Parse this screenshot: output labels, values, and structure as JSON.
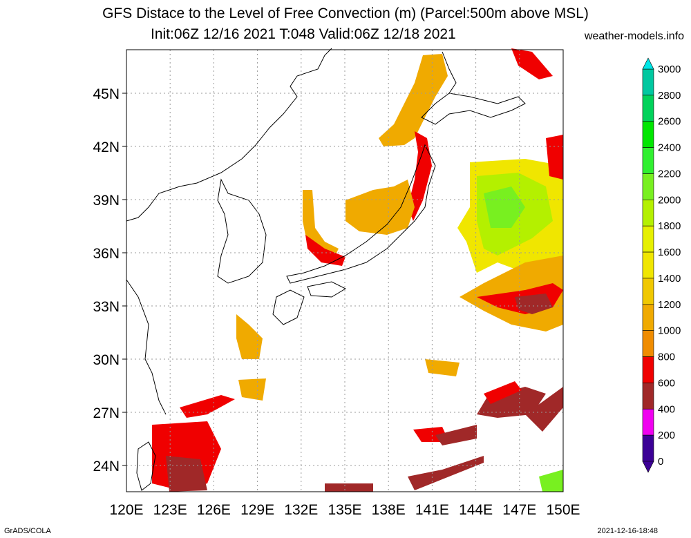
{
  "title": {
    "line1": "GFS Distace to the Level of Free Convection (m) (Parcel:500m above MSL)",
    "line2": "Init:06Z 12/16 2021 T:048 Valid:06Z 12/18 2021"
  },
  "site": "weather-models.info",
  "footer": {
    "left": "GrADS/COLA",
    "right": "2021-12-16-18:48"
  },
  "map": {
    "lon_labels": [
      "120E",
      "123E",
      "126E",
      "129E",
      "132E",
      "135E",
      "138E",
      "141E",
      "144E",
      "147E",
      "150E"
    ],
    "lat_labels": [
      "45N",
      "42N",
      "39N",
      "36N",
      "33N",
      "30N",
      "27N",
      "24N"
    ]
  },
  "colorbar": {
    "labels": [
      "3000",
      "2800",
      "2600",
      "2400",
      "2200",
      "2000",
      "1800",
      "1600",
      "1400",
      "1200",
      "1000",
      "800",
      "600",
      "400",
      "200",
      "0"
    ],
    "colors": [
      "#00e6e6",
      "#00c8a0",
      "#00d25a",
      "#00e600",
      "#30f030",
      "#78f020",
      "#b4f000",
      "#e6f000",
      "#f0e600",
      "#f0c800",
      "#f0aa00",
      "#f08c00",
      "#f00000",
      "#a02828",
      "#f000f0",
      "#3c0096"
    ]
  },
  "colors": {
    "frame": "#000000",
    "grid": "#999999",
    "coast": "#000000"
  }
}
